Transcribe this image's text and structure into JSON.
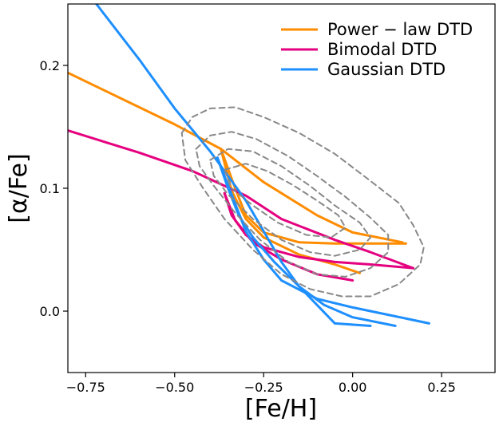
{
  "chart_data": {
    "type": "line",
    "title": "",
    "xlabel": "[Fe/H]",
    "ylabel": "[α/Fe]",
    "xlim": [
      -0.8,
      0.4
    ],
    "ylim": [
      -0.05,
      0.25
    ],
    "x_ticks": [
      -0.75,
      -0.5,
      -0.25,
      0.0,
      0.25
    ],
    "x_tick_labels": [
      "−0.75",
      "−0.50",
      "−0.25",
      "0.00",
      "0.25"
    ],
    "y_ticks": [
      0.0,
      0.1,
      0.2
    ],
    "y_tick_labels": [
      "0.0",
      "0.1",
      "0.2"
    ],
    "grid": false,
    "legend_position": "top-right",
    "legend": [
      {
        "label": "Power − law DTD",
        "color": "#ff8c00"
      },
      {
        "label": "Bimodal DTD",
        "color": "#e5007f"
      },
      {
        "label": "Gaussian DTD",
        "color": "#1e8fff"
      }
    ],
    "series": [
      {
        "color": "#ff8c00",
        "dash": "solid",
        "points": [
          [
            -0.8,
            0.194
          ],
          [
            -0.5,
            0.152
          ],
          [
            -0.37,
            0.132
          ],
          [
            -0.25,
            0.105
          ],
          [
            -0.1,
            0.078
          ],
          [
            0.0,
            0.064
          ],
          [
            0.14,
            0.056
          ]
        ]
      },
      {
        "color": "#ff8c00",
        "dash": "solid",
        "points": [
          [
            -0.37,
            0.132
          ],
          [
            -0.33,
            0.1
          ],
          [
            -0.3,
            0.078
          ],
          [
            -0.25,
            0.064
          ],
          [
            -0.15,
            0.056
          ],
          [
            -0.05,
            0.055
          ],
          [
            0.15,
            0.055
          ]
        ]
      },
      {
        "color": "#ff8c00",
        "dash": "solid",
        "points": [
          [
            -0.37,
            0.132
          ],
          [
            -0.34,
            0.098
          ],
          [
            -0.3,
            0.075
          ],
          [
            -0.25,
            0.06
          ],
          [
            -0.15,
            0.046
          ],
          [
            -0.05,
            0.038
          ],
          [
            0.02,
            0.031
          ]
        ]
      },
      {
        "color": "#e5007f",
        "dash": "solid",
        "points": [
          [
            -0.8,
            0.147
          ],
          [
            -0.6,
            0.129
          ],
          [
            -0.45,
            0.114
          ],
          [
            -0.3,
            0.094
          ],
          [
            -0.2,
            0.075
          ],
          [
            -0.05,
            0.058
          ],
          [
            0.05,
            0.048
          ],
          [
            0.17,
            0.035
          ]
        ]
      },
      {
        "color": "#e5007f",
        "dash": "solid",
        "points": [
          [
            -0.36,
            0.096
          ],
          [
            -0.34,
            0.078
          ],
          [
            -0.3,
            0.062
          ],
          [
            -0.25,
            0.052
          ],
          [
            -0.15,
            0.044
          ],
          [
            -0.05,
            0.04
          ],
          [
            0.05,
            0.038
          ],
          [
            0.17,
            0.035
          ]
        ]
      },
      {
        "color": "#e5007f",
        "dash": "solid",
        "points": [
          [
            -0.36,
            0.096
          ],
          [
            -0.33,
            0.074
          ],
          [
            -0.28,
            0.056
          ],
          [
            -0.2,
            0.042
          ],
          [
            -0.1,
            0.03
          ],
          [
            0.0,
            0.025
          ]
        ]
      },
      {
        "color": "#1e8fff",
        "dash": "solid",
        "points": [
          [
            -0.72,
            0.25
          ],
          [
            -0.6,
            0.205
          ],
          [
            -0.5,
            0.165
          ],
          [
            -0.4,
            0.13
          ],
          [
            -0.3,
            0.09
          ],
          [
            -0.2,
            0.04
          ],
          [
            -0.15,
            0.02
          ],
          [
            -0.1,
            0.005
          ],
          [
            -0.05,
            -0.01
          ],
          [
            0.05,
            -0.012
          ]
        ]
      },
      {
        "color": "#1e8fff",
        "dash": "solid",
        "points": [
          [
            -0.38,
            0.125
          ],
          [
            -0.34,
            0.095
          ],
          [
            -0.3,
            0.065
          ],
          [
            -0.25,
            0.042
          ],
          [
            -0.2,
            0.025
          ],
          [
            -0.1,
            0.01
          ],
          [
            0.0,
            0.003
          ],
          [
            0.1,
            -0.003
          ],
          [
            0.215,
            -0.01
          ]
        ]
      },
      {
        "color": "#1e8fff",
        "dash": "solid",
        "points": [
          [
            -0.38,
            0.125
          ],
          [
            -0.35,
            0.1
          ],
          [
            -0.32,
            0.078
          ],
          [
            -0.28,
            0.06
          ],
          [
            -0.22,
            0.04
          ],
          [
            -0.15,
            0.02
          ],
          [
            -0.08,
            0.005
          ],
          [
            0.0,
            -0.005
          ],
          [
            0.12,
            -0.012
          ]
        ]
      },
      {
        "color": "#888888",
        "dash": "dashed",
        "closed": true,
        "points": [
          [
            -0.48,
            0.145
          ],
          [
            -0.45,
            0.158
          ],
          [
            -0.4,
            0.165
          ],
          [
            -0.33,
            0.166
          ],
          [
            -0.25,
            0.158
          ],
          [
            -0.15,
            0.145
          ],
          [
            -0.05,
            0.128
          ],
          [
            0.05,
            0.106
          ],
          [
            0.13,
            0.088
          ],
          [
            0.17,
            0.07
          ],
          [
            0.2,
            0.052
          ],
          [
            0.19,
            0.038
          ],
          [
            0.13,
            0.022
          ],
          [
            0.05,
            0.012
          ],
          [
            -0.03,
            0.012
          ],
          [
            -0.12,
            0.018
          ],
          [
            -0.2,
            0.03
          ],
          [
            -0.28,
            0.05
          ],
          [
            -0.36,
            0.075
          ],
          [
            -0.42,
            0.1
          ],
          [
            -0.47,
            0.123
          ]
        ]
      },
      {
        "color": "#888888",
        "dash": "dashed",
        "closed": true,
        "points": [
          [
            -0.44,
            0.132
          ],
          [
            -0.4,
            0.143
          ],
          [
            -0.34,
            0.146
          ],
          [
            -0.27,
            0.14
          ],
          [
            -0.18,
            0.126
          ],
          [
            -0.1,
            0.11
          ],
          [
            -0.02,
            0.093
          ],
          [
            0.05,
            0.076
          ],
          [
            0.1,
            0.062
          ],
          [
            0.1,
            0.048
          ],
          [
            0.05,
            0.035
          ],
          [
            -0.02,
            0.028
          ],
          [
            -0.1,
            0.03
          ],
          [
            -0.18,
            0.04
          ],
          [
            -0.26,
            0.058
          ],
          [
            -0.33,
            0.08
          ],
          [
            -0.39,
            0.102
          ],
          [
            -0.43,
            0.118
          ]
        ]
      },
      {
        "color": "#888888",
        "dash": "dashed",
        "closed": true,
        "points": [
          [
            -0.4,
            0.123
          ],
          [
            -0.35,
            0.132
          ],
          [
            -0.28,
            0.13
          ],
          [
            -0.2,
            0.118
          ],
          [
            -0.12,
            0.102
          ],
          [
            -0.05,
            0.086
          ],
          [
            0.02,
            0.072
          ],
          [
            0.05,
            0.06
          ],
          [
            0.02,
            0.05
          ],
          [
            -0.05,
            0.045
          ],
          [
            -0.12,
            0.048
          ],
          [
            -0.2,
            0.058
          ],
          [
            -0.28,
            0.075
          ],
          [
            -0.35,
            0.095
          ],
          [
            -0.39,
            0.11
          ]
        ]
      },
      {
        "color": "#888888",
        "dash": "dashed",
        "closed": true,
        "points": [
          [
            -0.36,
            0.115
          ],
          [
            -0.3,
            0.12
          ],
          [
            -0.24,
            0.114
          ],
          [
            -0.17,
            0.103
          ],
          [
            -0.1,
            0.09
          ],
          [
            -0.04,
            0.078
          ],
          [
            -0.02,
            0.068
          ],
          [
            -0.06,
            0.06
          ],
          [
            -0.13,
            0.062
          ],
          [
            -0.21,
            0.072
          ],
          [
            -0.28,
            0.086
          ],
          [
            -0.34,
            0.1
          ]
        ]
      }
    ]
  }
}
